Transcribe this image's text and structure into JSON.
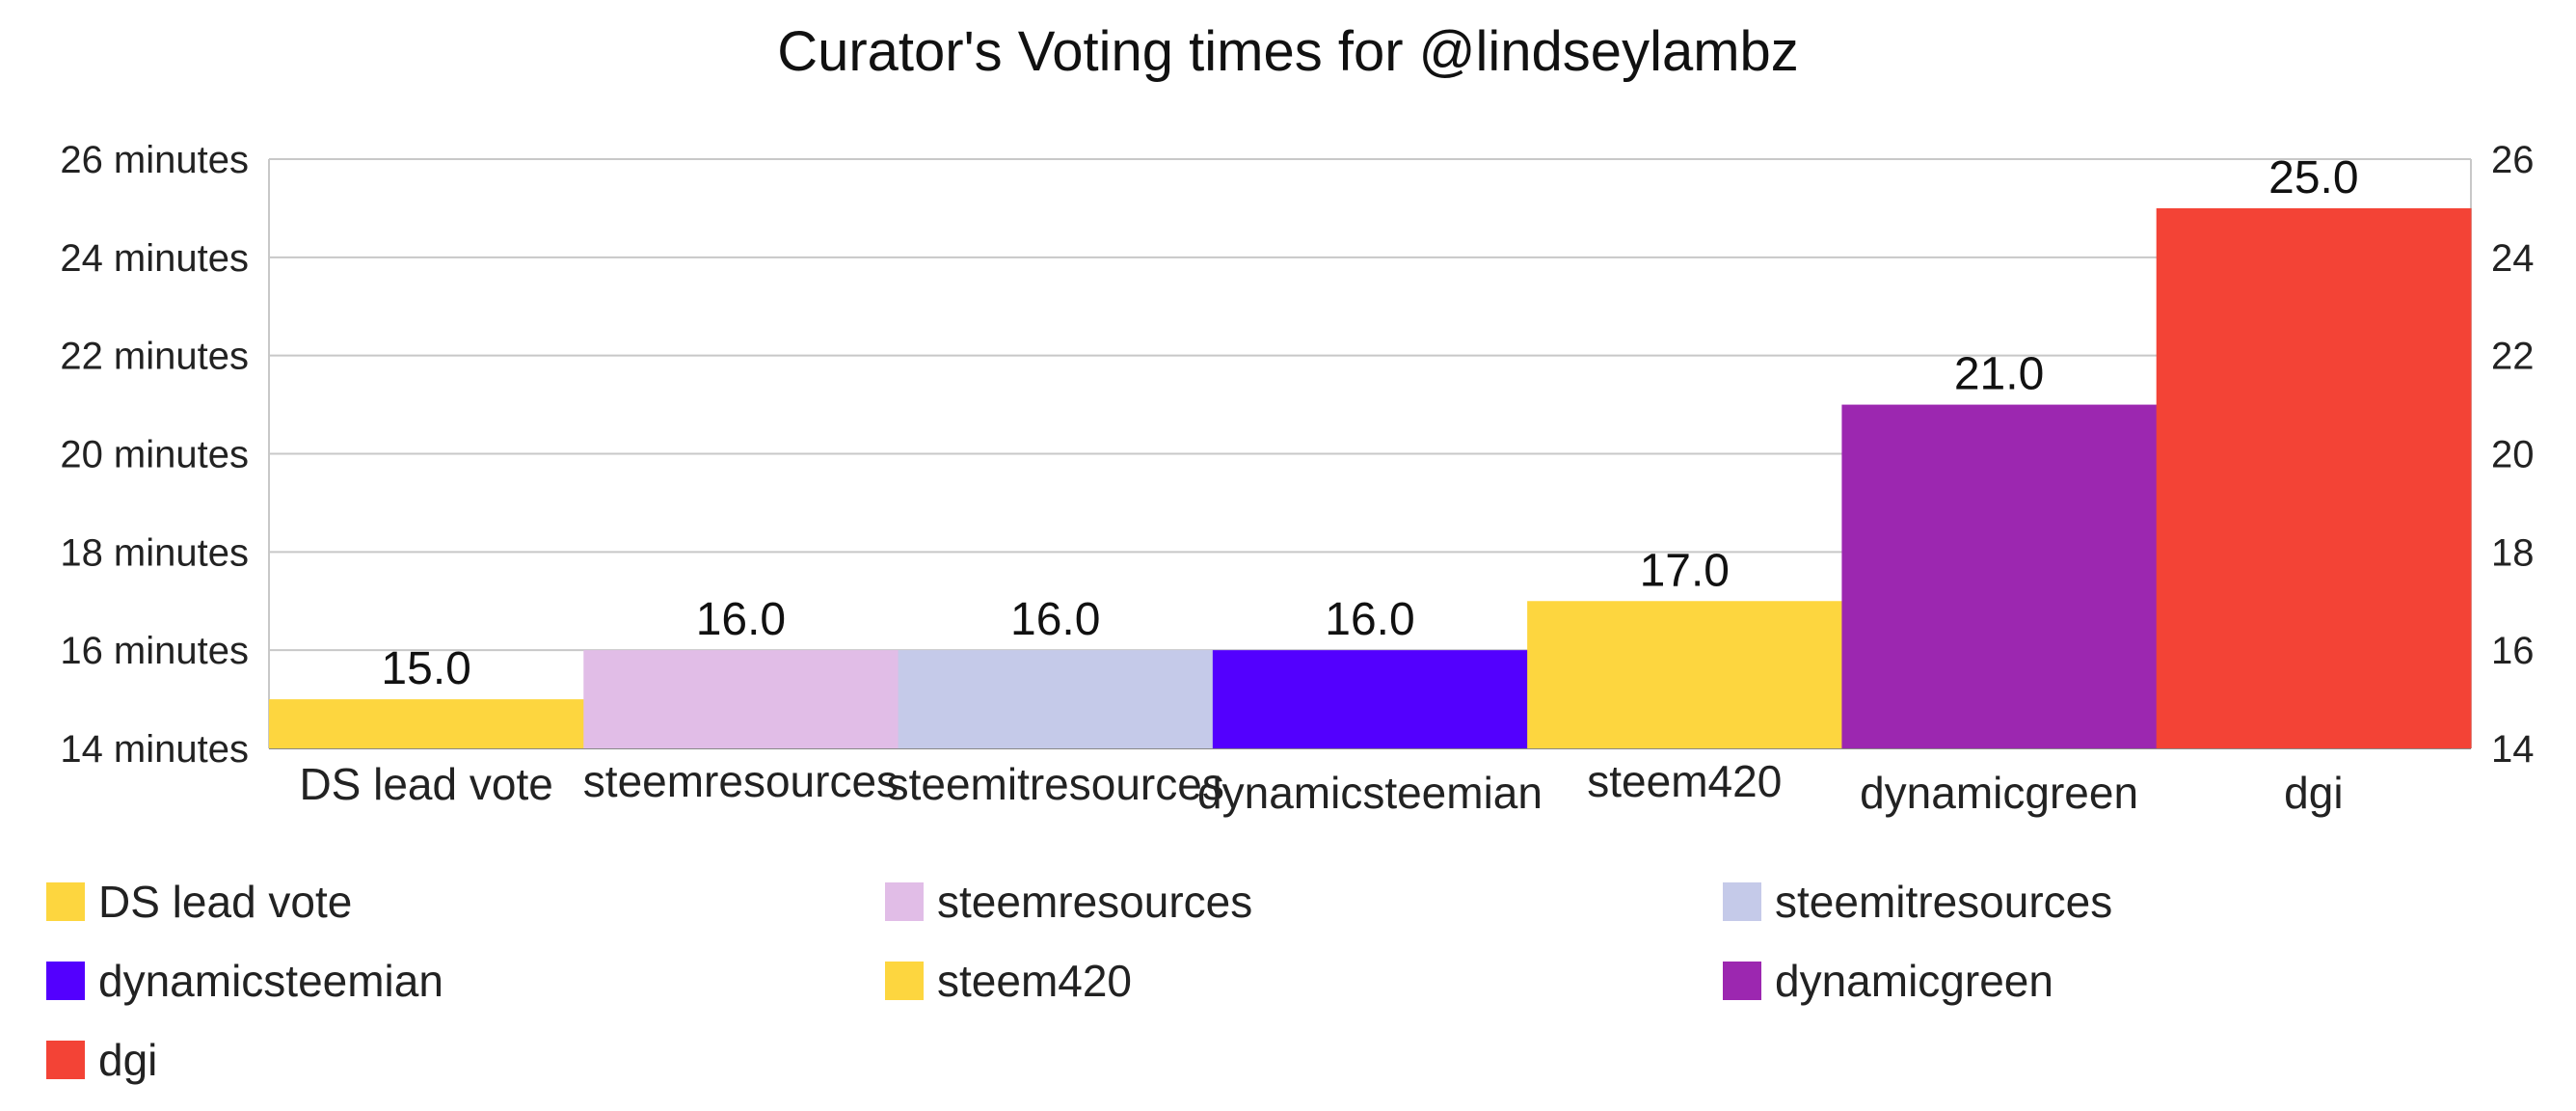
{
  "chart_data": {
    "type": "bar",
    "title": "Curator's Voting times for @lindseylambz",
    "xlabel": "",
    "ylabel": "",
    "categories": [
      "DS lead vote",
      "steemresources",
      "steemitresources",
      "dynamicsteemian",
      "steem420",
      "dynamicgreen",
      "dgi"
    ],
    "values": [
      15.0,
      16.0,
      16.0,
      16.0,
      17.0,
      21.0,
      25.0
    ],
    "value_labels": [
      "15.0",
      "16.0",
      "16.0",
      "16.0",
      "17.0",
      "21.0",
      "25.0"
    ],
    "colors": [
      "#fdd63f",
      "#e1bde7",
      "#c5cae9",
      "#5300fe",
      "#fdd63f",
      "#9c27b0",
      "#f34336"
    ],
    "ylim": [
      14,
      26
    ],
    "yticks": [
      14,
      16,
      18,
      20,
      22,
      24,
      26
    ],
    "ytick_labels_left": [
      "14 minutes",
      "16 minutes",
      "18 minutes",
      "20 minutes",
      "22 minutes",
      "24 minutes",
      "26 minutes"
    ],
    "ytick_labels_right": [
      "14",
      "16",
      "18",
      "20",
      "22",
      "24",
      "26"
    ],
    "grid": true,
    "legend_position": "bottom",
    "legend": [
      "DS lead vote",
      "steemresources",
      "steemitresources",
      "dynamicsteemian",
      "steem420",
      "dynamicgreen",
      "dgi"
    ]
  }
}
